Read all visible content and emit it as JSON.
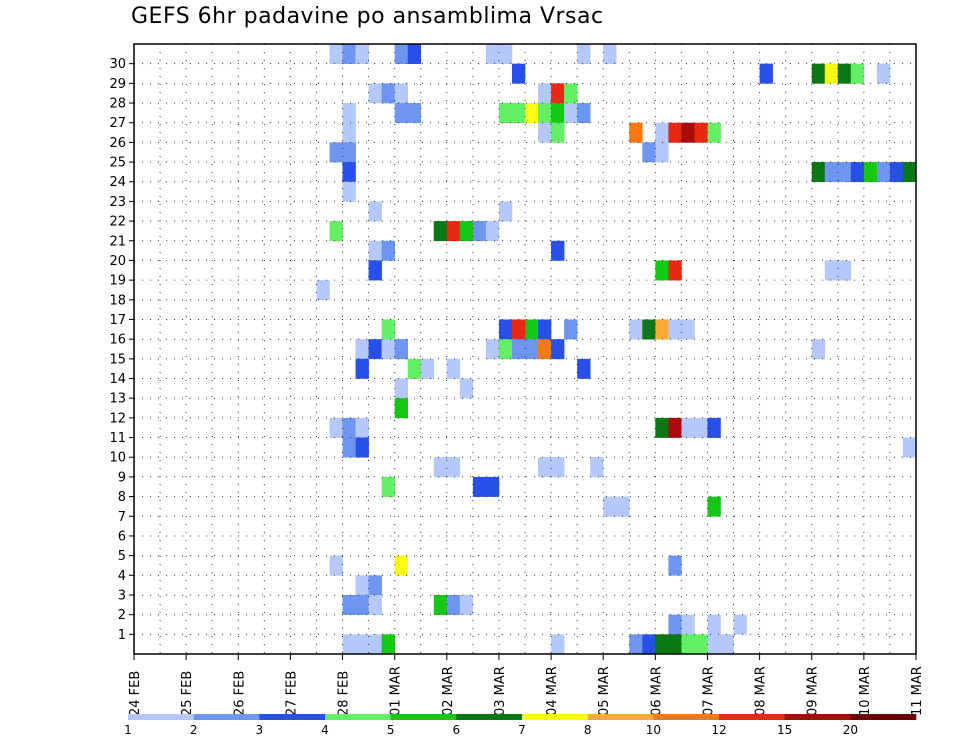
{
  "chart_data": {
    "type": "heatmap",
    "title": "GEFS 6hr padavine po ansamblima Vrsac",
    "xlabel": "",
    "ylabel": "",
    "x_tick_labels": [
      "24 FEB",
      "25 FEB",
      "26 FEB",
      "27 FEB",
      "28 FEB",
      "01 MAR",
      "02 MAR",
      "03 MAR",
      "04 MAR",
      "05 MAR",
      "06 MAR",
      "07 MAR",
      "08 MAR",
      "09 MAR",
      "10 MAR",
      "11 MAR"
    ],
    "y_tick_labels": [
      "1",
      "2",
      "3",
      "4",
      "5",
      "6",
      "7",
      "8",
      "9",
      "10",
      "11",
      "12",
      "13",
      "14",
      "15",
      "16",
      "17",
      "18",
      "19",
      "20",
      "21",
      "22",
      "23",
      "24",
      "25",
      "26",
      "27",
      "28",
      "29",
      "30"
    ],
    "x_range_steps": [
      0,
      60
    ],
    "steps_per_day": 4,
    "members_range": [
      0,
      30
    ],
    "grid": true,
    "legend_position": "bottom",
    "colorbar": {
      "labels": [
        "1",
        "2",
        "3",
        "4",
        "5",
        "6",
        "7",
        "8",
        "10",
        "12",
        "15",
        "20"
      ],
      "colors": [
        "#b4c8fa",
        "#6e96f0",
        "#2850e6",
        "#64f064",
        "#14c814",
        "#0a7814",
        "#fafa14",
        "#faaa32",
        "#fa7814",
        "#e62814",
        "#aa0a0a",
        "#6e0000"
      ]
    },
    "levels": {
      "1": "#b4c8fa",
      "2": "#6e96f0",
      "3": "#2850e6",
      "4": "#64f064",
      "5": "#14c814",
      "6": "#0a7814",
      "7": "#fafa14",
      "8": "#faaa32",
      "10": "#fa7814",
      "12": "#e62814",
      "15": "#aa0a0a",
      "20": "#6e0000"
    },
    "cells": [
      [
        15,
        30,
        1
      ],
      [
        16,
        30,
        2
      ],
      [
        17,
        30,
        1
      ],
      [
        20,
        30,
        2
      ],
      [
        21,
        30,
        3
      ],
      [
        27,
        30,
        1
      ],
      [
        28,
        30,
        1
      ],
      [
        34,
        30,
        1
      ],
      [
        36,
        30,
        1
      ],
      [
        29,
        29,
        3
      ],
      [
        48,
        29,
        3
      ],
      [
        52,
        29,
        6
      ],
      [
        53,
        29,
        7
      ],
      [
        54,
        29,
        6
      ],
      [
        55,
        29,
        4
      ],
      [
        57,
        29,
        1
      ],
      [
        18,
        28,
        1
      ],
      [
        19,
        28,
        2
      ],
      [
        20,
        28,
        1
      ],
      [
        31,
        28,
        1
      ],
      [
        32,
        28,
        12
      ],
      [
        33,
        28,
        4
      ],
      [
        16,
        27,
        1
      ],
      [
        20,
        27,
        2
      ],
      [
        21,
        27,
        2
      ],
      [
        28,
        27,
        4
      ],
      [
        29,
        27,
        4
      ],
      [
        30,
        27,
        7
      ],
      [
        31,
        27,
        4
      ],
      [
        32,
        27,
        5
      ],
      [
        33,
        27,
        1
      ],
      [
        34,
        27,
        2
      ],
      [
        16,
        26,
        1
      ],
      [
        31,
        26,
        1
      ],
      [
        32,
        26,
        4
      ],
      [
        38,
        26,
        10
      ],
      [
        40,
        26,
        1
      ],
      [
        41,
        26,
        12
      ],
      [
        42,
        26,
        15
      ],
      [
        43,
        26,
        12
      ],
      [
        44,
        26,
        4
      ],
      [
        15,
        25,
        2
      ],
      [
        16,
        25,
        2
      ],
      [
        39,
        25,
        2
      ],
      [
        40,
        25,
        1
      ],
      [
        16,
        24,
        3
      ],
      [
        52,
        24,
        6
      ],
      [
        53,
        24,
        2
      ],
      [
        54,
        24,
        2
      ],
      [
        55,
        24,
        3
      ],
      [
        56,
        24,
        5
      ],
      [
        57,
        24,
        2
      ],
      [
        58,
        24,
        3
      ],
      [
        59,
        24,
        6
      ],
      [
        16,
        23,
        1
      ],
      [
        18,
        22,
        1
      ],
      [
        28,
        22,
        1
      ],
      [
        15,
        21,
        4
      ],
      [
        23,
        21,
        6
      ],
      [
        24,
        21,
        12
      ],
      [
        25,
        21,
        5
      ],
      [
        26,
        21,
        2
      ],
      [
        27,
        21,
        1
      ],
      [
        18,
        20,
        1
      ],
      [
        19,
        20,
        2
      ],
      [
        32,
        20,
        3
      ],
      [
        18,
        19,
        3
      ],
      [
        40,
        19,
        5
      ],
      [
        41,
        19,
        12
      ],
      [
        53,
        19,
        1
      ],
      [
        54,
        19,
        1
      ],
      [
        14,
        18,
        1
      ],
      [
        19,
        16,
        4
      ],
      [
        28,
        16,
        3
      ],
      [
        29,
        16,
        12
      ],
      [
        30,
        16,
        5
      ],
      [
        31,
        16,
        3
      ],
      [
        33,
        16,
        2
      ],
      [
        38,
        16,
        1
      ],
      [
        39,
        16,
        6
      ],
      [
        40,
        16,
        8
      ],
      [
        41,
        16,
        1
      ],
      [
        42,
        16,
        1
      ],
      [
        17,
        15,
        1
      ],
      [
        18,
        15,
        3
      ],
      [
        19,
        15,
        1
      ],
      [
        20,
        15,
        2
      ],
      [
        27,
        15,
        1
      ],
      [
        28,
        15,
        4
      ],
      [
        29,
        15,
        2
      ],
      [
        30,
        15,
        2
      ],
      [
        31,
        15,
        10
      ],
      [
        32,
        15,
        3
      ],
      [
        52,
        15,
        1
      ],
      [
        17,
        14,
        3
      ],
      [
        21,
        14,
        4
      ],
      [
        22,
        14,
        1
      ],
      [
        24,
        14,
        1
      ],
      [
        34,
        14,
        3
      ],
      [
        20,
        13,
        1
      ],
      [
        25,
        13,
        1
      ],
      [
        20,
        12,
        5
      ],
      [
        15,
        11,
        1
      ],
      [
        16,
        11,
        2
      ],
      [
        17,
        11,
        1
      ],
      [
        40,
        11,
        6
      ],
      [
        41,
        11,
        15
      ],
      [
        42,
        11,
        1
      ],
      [
        43,
        11,
        1
      ],
      [
        44,
        11,
        3
      ],
      [
        16,
        10,
        2
      ],
      [
        17,
        10,
        3
      ],
      [
        59,
        10,
        1
      ],
      [
        23,
        9,
        1
      ],
      [
        24,
        9,
        1
      ],
      [
        31,
        9,
        1
      ],
      [
        32,
        9,
        1
      ],
      [
        35,
        9,
        1
      ],
      [
        19,
        8,
        4
      ],
      [
        26,
        8,
        3
      ],
      [
        27,
        8,
        3
      ],
      [
        36,
        7,
        1
      ],
      [
        37,
        7,
        1
      ],
      [
        44,
        7,
        5
      ],
      [
        15,
        4,
        1
      ],
      [
        20,
        4,
        7
      ],
      [
        41,
        4,
        2
      ],
      [
        17,
        3,
        1
      ],
      [
        18,
        3,
        2
      ],
      [
        16,
        2,
        2
      ],
      [
        17,
        2,
        2
      ],
      [
        18,
        2,
        1
      ],
      [
        23,
        2,
        5
      ],
      [
        24,
        2,
        2
      ],
      [
        25,
        2,
        1
      ],
      [
        41,
        1,
        2
      ],
      [
        42,
        1,
        1
      ],
      [
        44,
        1,
        1
      ],
      [
        46,
        1,
        1
      ],
      [
        16,
        0,
        1
      ],
      [
        17,
        0,
        1
      ],
      [
        18,
        0,
        1
      ],
      [
        19,
        0,
        5
      ],
      [
        32,
        0,
        1
      ],
      [
        38,
        0,
        2
      ],
      [
        39,
        0,
        3
      ],
      [
        40,
        0,
        6
      ],
      [
        41,
        0,
        6
      ],
      [
        42,
        0,
        4
      ],
      [
        43,
        0,
        4
      ],
      [
        44,
        0,
        1
      ],
      [
        45,
        0,
        1
      ]
    ]
  }
}
